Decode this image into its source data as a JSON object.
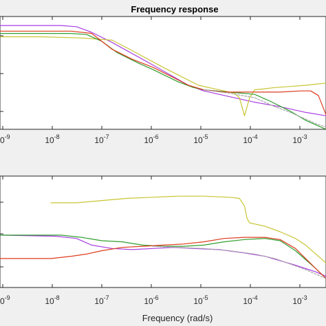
{
  "chart_data": [
    {
      "type": "line",
      "title": "Frequency response",
      "xscale": "log",
      "xlim": [
        -9,
        -2.6
      ],
      "ylim": [
        0,
        1
      ],
      "x_tick_labels": [
        "10-9",
        "10-8",
        "10-7",
        "10-6",
        "10-5",
        "10-4",
        "10-3"
      ],
      "y_tick_labels": [],
      "grid": false,
      "series": [
        {
          "color": "#a83de0",
          "x": [
            -9.0,
            -7.8,
            -7.5,
            -7.2,
            -6.8,
            -6.0,
            -5.3,
            -5.0,
            -4.5,
            -4.0,
            -3.5,
            -3.0,
            -2.6
          ],
          "y": [
            0.92,
            0.92,
            0.91,
            0.86,
            0.77,
            0.57,
            0.39,
            0.34,
            0.29,
            0.24,
            0.2,
            0.15,
            0.12
          ]
        },
        {
          "color": "#c8c432",
          "x": [
            -9.0,
            -8.2,
            -7.4,
            -7.1,
            -6.8,
            -6.5,
            -5.8,
            -5.1,
            -4.7,
            -4.4,
            -4.3,
            -4.2,
            -4.1,
            -4.0,
            -3.8,
            -3.6,
            -3.3,
            -3.0,
            -2.8,
            -2.6
          ],
          "y": [
            0.82,
            0.82,
            0.81,
            0.8,
            0.79,
            0.72,
            0.55,
            0.39,
            0.35,
            0.32,
            0.28,
            0.12,
            0.28,
            0.35,
            0.36,
            0.37,
            0.38,
            0.39,
            0.4,
            0.41
          ]
        },
        {
          "color": "#2e9e2e",
          "x": [
            -9.0,
            -7.6,
            -7.3,
            -7.0,
            -6.7,
            -6.3,
            -6.0,
            -5.5,
            -5.2,
            -5.0,
            -4.5,
            -4.0,
            -3.7,
            -3.3,
            -3.0,
            -2.6
          ],
          "y": [
            0.85,
            0.85,
            0.84,
            0.78,
            0.68,
            0.59,
            0.53,
            0.42,
            0.37,
            0.35,
            0.33,
            0.31,
            0.25,
            0.16,
            0.08,
            0.0
          ]
        },
        {
          "color": "#dd3a1c",
          "x": [
            -9.0,
            -7.6,
            -7.2,
            -6.8,
            -6.4,
            -6.0,
            -5.6,
            -5.3,
            -5.0,
            -4.6,
            -4.0,
            -3.5,
            -3.1,
            -2.9,
            -2.75,
            -2.6
          ],
          "y": [
            0.87,
            0.87,
            0.85,
            0.71,
            0.62,
            0.55,
            0.46,
            0.39,
            0.35,
            0.33,
            0.33,
            0.33,
            0.34,
            0.34,
            0.3,
            0.13
          ]
        },
        {
          "color": "#a8a8a8",
          "dash": "3 2",
          "x": [
            -5.0,
            -4.5,
            -4.0,
            -3.6,
            -3.3,
            -3.0,
            -2.8,
            -2.6
          ],
          "y": [
            0.35,
            0.32,
            0.28,
            0.2,
            0.15,
            0.09,
            0.05,
            0.02
          ]
        }
      ]
    },
    {
      "type": "line",
      "title": "",
      "xscale": "log",
      "xlim": [
        -9,
        -2.6
      ],
      "ylim": [
        0,
        1
      ],
      "xlabel": "Frequency  (rad/s)",
      "x_tick_labels": [
        "10-9",
        "10-8",
        "10-7",
        "10-6",
        "10-5",
        "10-4",
        "10-3"
      ],
      "y_tick_labels": [],
      "grid": false,
      "series": [
        {
          "color": "#a83de0",
          "x": [
            -9.0,
            -7.9,
            -7.5,
            -7.2,
            -6.8,
            -6.4,
            -6.0,
            -5.6,
            -5.2,
            -4.7,
            -4.2,
            -3.8,
            -3.5,
            -3.2,
            -3.0,
            -2.8,
            -2.6
          ],
          "y": [
            0.47,
            0.46,
            0.44,
            0.38,
            0.35,
            0.34,
            0.35,
            0.36,
            0.35,
            0.34,
            0.31,
            0.28,
            0.24,
            0.2,
            0.17,
            0.14,
            0.1
          ]
        },
        {
          "color": "#c8c432",
          "x": [
            -8.0,
            -7.5,
            -7.0,
            -6.5,
            -6.0,
            -5.5,
            -5.0,
            -4.5,
            -4.3,
            -4.2,
            -4.15,
            -4.1,
            -4.0,
            -3.8,
            -3.5,
            -3.2,
            -3.0,
            -2.8,
            -2.6
          ],
          "y": [
            0.76,
            0.76,
            0.78,
            0.8,
            0.81,
            0.82,
            0.82,
            0.81,
            0.8,
            0.73,
            0.62,
            0.58,
            0.57,
            0.55,
            0.5,
            0.44,
            0.38,
            0.3,
            0.22
          ]
        },
        {
          "color": "#2e9e2e",
          "x": [
            -9.0,
            -7.8,
            -7.4,
            -7.0,
            -6.6,
            -6.2,
            -5.8,
            -5.4,
            -5.0,
            -4.6,
            -4.2,
            -3.8,
            -3.5,
            -3.2,
            -3.0,
            -2.8,
            -2.6
          ],
          "y": [
            0.47,
            0.47,
            0.45,
            0.42,
            0.41,
            0.38,
            0.37,
            0.37,
            0.38,
            0.41,
            0.43,
            0.44,
            0.42,
            0.33,
            0.25,
            0.17,
            0.08
          ]
        },
        {
          "color": "#dd3a1c",
          "x": [
            -9.0,
            -8.0,
            -7.6,
            -7.3,
            -7.0,
            -6.6,
            -6.2,
            -5.8,
            -5.4,
            -5.0,
            -4.6,
            -4.2,
            -3.8,
            -3.5,
            -3.2,
            -3.0,
            -2.8,
            -2.6
          ],
          "y": [
            0.26,
            0.26,
            0.28,
            0.3,
            0.33,
            0.36,
            0.37,
            0.38,
            0.39,
            0.41,
            0.44,
            0.45,
            0.45,
            0.43,
            0.35,
            0.26,
            0.17,
            0.08
          ]
        },
        {
          "color": "#a8a8a8",
          "dash": "3 2",
          "x": [
            -6.0,
            -5.5,
            -5.0,
            -4.5,
            -4.0,
            -3.6,
            -3.3,
            -3.0,
            -2.8,
            -2.6
          ],
          "y": [
            0.37,
            0.36,
            0.35,
            0.33,
            0.3,
            0.26,
            0.21,
            0.16,
            0.12,
            0.08
          ]
        }
      ]
    }
  ]
}
